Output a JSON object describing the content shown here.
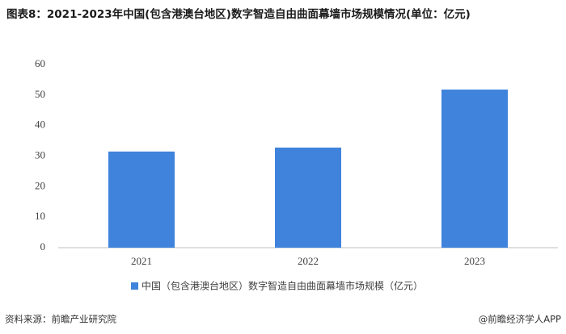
{
  "chart_data": {
    "type": "bar",
    "title": "图表8：2021-2023年中国(包含港澳台地区)数字智造自由曲面幕墙市场规模情况(单位：亿元)",
    "categories": [
      "2021",
      "2022",
      "2023"
    ],
    "series": [
      {
        "name": "中国（包含港澳台地区）数字智造自由曲面幕墙市场规模（亿元）",
        "color": "#3f83dc",
        "values": [
          31.5,
          32.8,
          51.8
        ]
      }
    ],
    "ylim": [
      0,
      60
    ],
    "yticks": [
      0,
      10,
      20,
      30,
      40,
      50,
      60
    ],
    "grid": false,
    "legend": "bottom",
    "source": "资料来源：前瞻产业研究院",
    "brand": "@前瞻经济学人APP"
  }
}
